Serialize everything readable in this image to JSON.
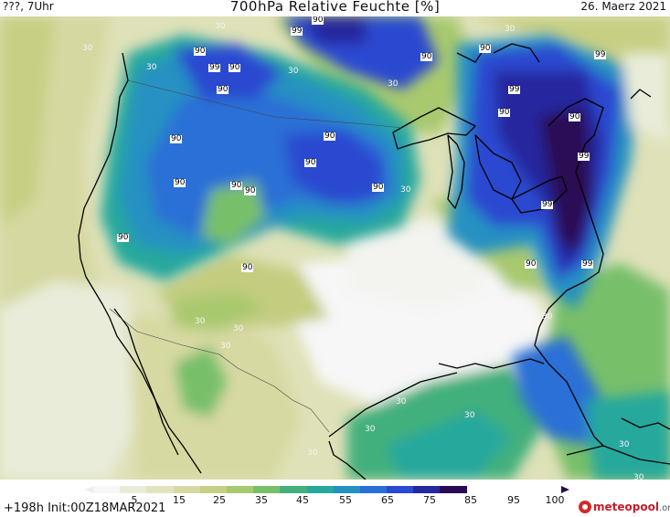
{
  "header": {
    "left": "???, 7Uhr",
    "title": "700hPa Relative Feuchte [%]",
    "right": "26. Maerz 2021"
  },
  "map": {
    "contour_labels": [
      {
        "text": "90",
        "style": "box"
      },
      {
        "text": "99",
        "style": "box"
      },
      {
        "text": "90",
        "style": "box"
      },
      {
        "text": "90",
        "style": "box"
      },
      {
        "text": "90",
        "style": "box"
      },
      {
        "text": "90",
        "style": "box"
      },
      {
        "text": "90",
        "style": "box"
      },
      {
        "text": "90",
        "style": "box"
      },
      {
        "text": "90",
        "style": "box"
      },
      {
        "text": "90",
        "style": "box"
      },
      {
        "text": "90",
        "style": "box"
      },
      {
        "text": "90",
        "style": "box"
      },
      {
        "text": "90",
        "style": "box"
      },
      {
        "text": "90",
        "style": "box"
      },
      {
        "text": "99",
        "style": "box"
      },
      {
        "text": "90",
        "style": "box"
      },
      {
        "text": "99",
        "style": "box"
      },
      {
        "text": "90",
        "style": "box"
      },
      {
        "text": "90",
        "style": "box"
      },
      {
        "text": "99",
        "style": "box"
      },
      {
        "text": "99",
        "style": "box"
      },
      {
        "text": "90",
        "style": "box"
      },
      {
        "text": "99",
        "style": "box"
      },
      {
        "text": "99",
        "style": "box"
      },
      {
        "text": "90",
        "style": "box"
      },
      {
        "text": "30",
        "style": "light"
      },
      {
        "text": "30",
        "style": "light"
      },
      {
        "text": "30",
        "style": "light"
      },
      {
        "text": "30",
        "style": "light"
      },
      {
        "text": "30",
        "style": "light"
      },
      {
        "text": "30",
        "style": "light"
      },
      {
        "text": "30",
        "style": "light"
      },
      {
        "text": "30",
        "style": "light"
      },
      {
        "text": "30",
        "style": "light"
      },
      {
        "text": "30",
        "style": "light"
      },
      {
        "text": "30",
        "style": "light"
      },
      {
        "text": "30",
        "style": "light"
      },
      {
        "text": "30",
        "style": "light"
      },
      {
        "text": "30",
        "style": "light"
      },
      {
        "text": "30",
        "style": "light"
      },
      {
        "text": "30",
        "style": "light"
      },
      {
        "text": "30",
        "style": "light"
      },
      {
        "text": "30",
        "style": "light"
      },
      {
        "text": "30",
        "style": "light"
      }
    ]
  },
  "colorbar": {
    "colors": [
      "#f7f7f7",
      "#e9ecd9",
      "#e2e4c0",
      "#d7d9a2",
      "#c7cf84",
      "#a9c96e",
      "#78bf6a",
      "#43b07b",
      "#27a89d",
      "#2591c2",
      "#2a6fd6",
      "#2b4ad0",
      "#26289e",
      "#2a0a55"
    ],
    "ticks": [
      "5",
      "15",
      "25",
      "35",
      "45",
      "55",
      "65",
      "75",
      "85",
      "95",
      "100"
    ]
  },
  "footer": {
    "run_info": "+198h  Init:00Z18MAR2021",
    "logo_name": "meteopool",
    "logo_tld": ".org"
  }
}
